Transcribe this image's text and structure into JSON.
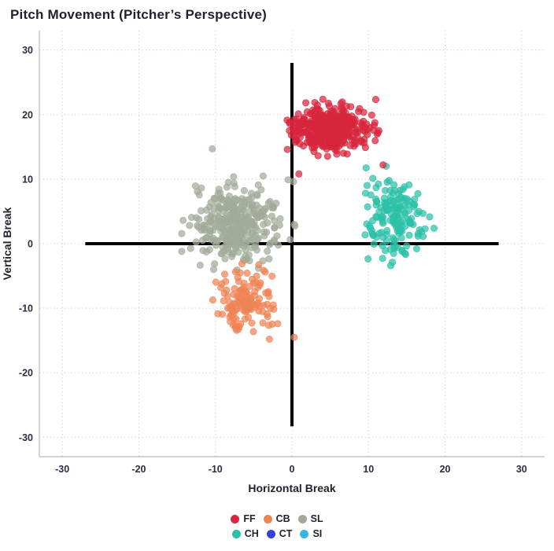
{
  "page": {
    "background": "#ffffff"
  },
  "chart_data": {
    "type": "scatter",
    "title": "Pitch Movement (Pitcher’s Perspective)",
    "xlabel": "Horizontal Break",
    "ylabel": "Vertical Break",
    "xlim": [
      -33,
      33
    ],
    "ylim": [
      -33,
      33
    ],
    "xticks": [
      -30,
      -20,
      -10,
      0,
      10,
      20,
      30
    ],
    "yticks": [
      -30,
      -20,
      -10,
      0,
      10,
      20,
      30
    ],
    "grid": {
      "style": "dotted",
      "color": "#d4d4d4"
    },
    "axis_color": "#c4c4c4",
    "text_color": "#2b2d42",
    "crosshair": {
      "color": "#000000",
      "width": 4,
      "x_span": [
        -27,
        27
      ],
      "y_span": [
        -28.3,
        28
      ]
    },
    "draw_order": [
      "SL",
      "CB",
      "CH",
      "FF",
      "CT",
      "SI"
    ],
    "series": [
      {
        "name": "FF",
        "color": "#d7263d",
        "n": 420,
        "center": [
          5.0,
          17.8
        ],
        "sd": [
          2.5,
          1.5
        ],
        "xrange": [
          -1.0,
          11.7
        ],
        "yrange": [
          13.4,
          22.4
        ],
        "outliers": [
          [
            0.9,
            10.8
          ],
          [
            11.9,
            12.2
          ],
          [
            -0.6,
            14.6
          ]
        ]
      },
      {
        "name": "CB",
        "color": "#ef8354",
        "n": 130,
        "center": [
          -6.0,
          -9.0
        ],
        "sd": [
          1.9,
          2.4
        ],
        "xrange": [
          -11.2,
          -0.5
        ],
        "yrange": [
          -15.2,
          -2.4
        ],
        "outliers": [
          [
            0.3,
            -14.5
          ]
        ]
      },
      {
        "name": "SL",
        "color": "#a2ab98",
        "n": 330,
        "center": [
          -7.0,
          3.0
        ],
        "sd": [
          2.6,
          2.9
        ],
        "xrange": [
          -15.5,
          0.5
        ],
        "yrange": [
          -4.6,
          11.2
        ],
        "outliers": [
          [
            -10.4,
            14.7
          ],
          [
            0.2,
            9.6
          ],
          [
            -0.5,
            9.9
          ]
        ]
      },
      {
        "name": "CH",
        "color": "#2bc0a8",
        "n": 155,
        "center": [
          13.5,
          4.0
        ],
        "sd": [
          2.0,
          2.8
        ],
        "xrange": [
          8.6,
          18.6
        ],
        "yrange": [
          -3.9,
          12.2
        ],
        "outliers": [
          [
            12.9,
            -3.4
          ],
          [
            12.3,
            12.0
          ]
        ]
      },
      {
        "name": "CT",
        "color": "#3642d9",
        "n": 0,
        "center": [
          0,
          0
        ],
        "sd": [
          0,
          0
        ],
        "xrange": [
          0,
          0
        ],
        "yrange": [
          0,
          0
        ],
        "outliers": []
      },
      {
        "name": "SI",
        "color": "#38b6e3",
        "n": 0,
        "center": [
          0,
          0
        ],
        "sd": [
          0,
          0
        ],
        "xrange": [
          0,
          0
        ],
        "yrange": [
          0,
          0
        ],
        "outliers": []
      }
    ],
    "legend": {
      "position": "bottom",
      "rows": [
        [
          "FF",
          "CB",
          "SL"
        ],
        [
          "CH",
          "CT",
          "SI"
        ]
      ]
    }
  }
}
